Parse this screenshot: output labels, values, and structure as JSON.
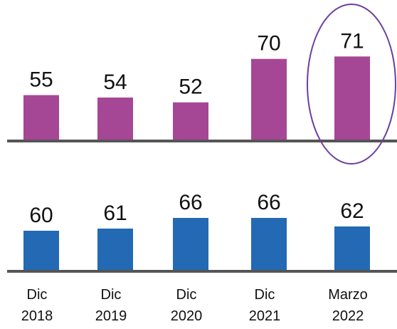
{
  "chart_data": {
    "type": "bar",
    "categories": [
      "Dic 2018",
      "Dic 2019",
      "Dic 2020",
      "Dic 2021",
      "Marzo 2022"
    ],
    "series": [
      {
        "color": "#a64796",
        "values": [
          55,
          54,
          52,
          70,
          71
        ],
        "ylim": [
          36,
          82
        ]
      },
      {
        "color": "#2469b3",
        "values": [
          60,
          61,
          66,
          66,
          62
        ],
        "ylim": [
          41,
          93
        ]
      }
    ]
  }
}
